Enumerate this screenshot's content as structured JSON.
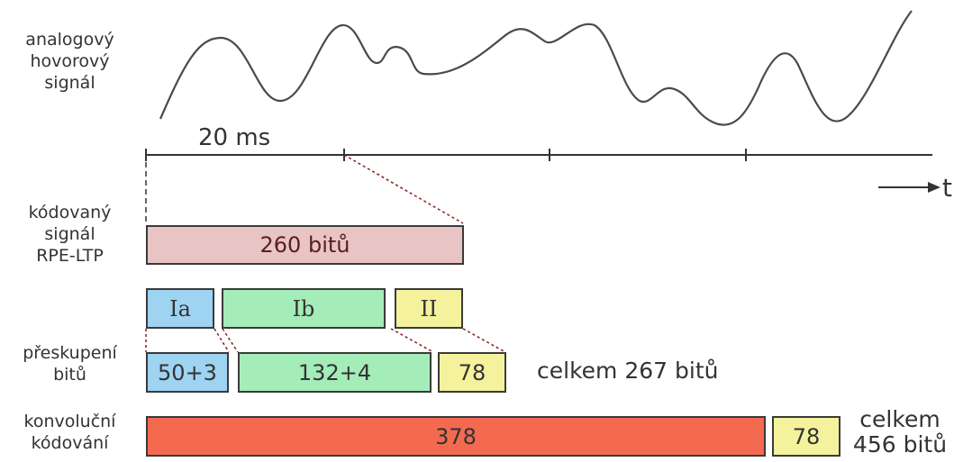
{
  "labels": {
    "analog": [
      "analogový",
      "hovorový",
      "signál"
    ],
    "coded": [
      "kódovaný",
      "signál",
      "RPE-LTP"
    ],
    "regroup": [
      "přeskupení",
      "bitů"
    ],
    "conv": [
      "konvoluční",
      "kódování"
    ]
  },
  "timeline": {
    "interval": "20 ms",
    "axis": "t"
  },
  "coded_box": "260 bitů",
  "classes": {
    "ia": "Ia",
    "ib": "Ib",
    "ii": "II"
  },
  "regroup_boxes": {
    "a": "50+3",
    "b": "132+4",
    "c": "78"
  },
  "regroup_total": "celkem 267 bitů",
  "conv_boxes": {
    "main": "378",
    "rest": "78"
  },
  "conv_total": [
    "celkem",
    "456 bitů"
  ],
  "colors": {
    "pink": "#e8c4c4",
    "blue": "#9fd3f2",
    "green": "#a4ecb8",
    "yellow": "#f4f29c",
    "red": "#f46a50",
    "dashed_line": "#8b1a1a"
  }
}
